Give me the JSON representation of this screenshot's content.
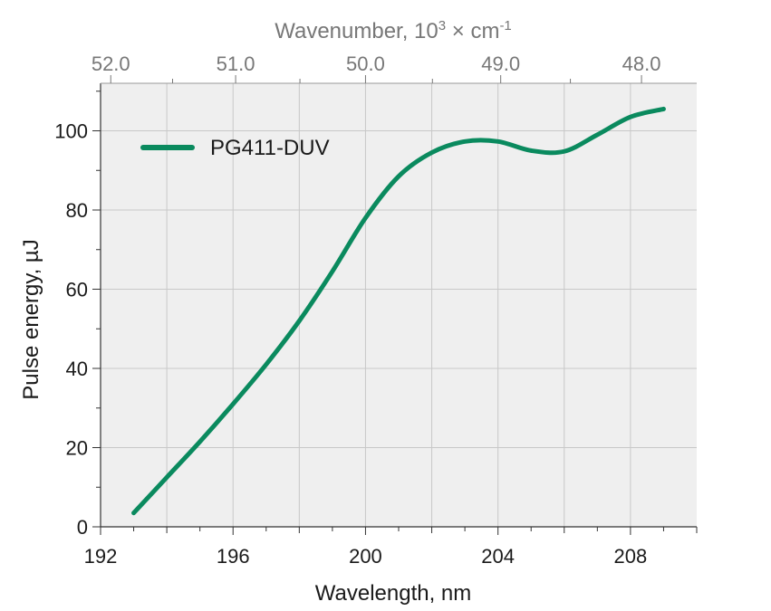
{
  "chart_data": {
    "type": "line",
    "xlabel": "Wavelength, nm",
    "ylabel": "Pulse energy, µJ",
    "top_axis": {
      "label_prefix": "Wavenumber, 10",
      "label_exp": "3",
      "label_mid": " × cm",
      "label_exp2": "-1",
      "ticks": [
        "52.0",
        "51.0",
        "50.0",
        "49.0",
        "48.0"
      ],
      "tick_values": [
        52.0,
        51.0,
        50.0,
        49.0,
        48.0
      ]
    },
    "xlim": [
      192,
      210
    ],
    "ylim": [
      0,
      112
    ],
    "x_ticks": [
      192,
      196,
      200,
      204,
      208
    ],
    "x_tick_labels": [
      "192",
      "196",
      "200",
      "204",
      "208"
    ],
    "y_ticks": [
      0,
      20,
      40,
      60,
      80,
      100
    ],
    "y_tick_labels": [
      "0",
      "20",
      "40",
      "60",
      "80",
      "100"
    ],
    "grid": true,
    "legend_placement": "top-left",
    "background": "#efefef",
    "series": [
      {
        "name": "PG411-DUV",
        "color": "#0a8a5e",
        "x": [
          193.0,
          194.0,
          195.0,
          196.0,
          197.0,
          198.0,
          199.0,
          200.0,
          201.0,
          202.0,
          203.0,
          204.0,
          205.0,
          206.0,
          207.0,
          208.0,
          209.0
        ],
        "y": [
          3.5,
          12.5,
          21.5,
          31.0,
          41.0,
          52.0,
          64.5,
          78.0,
          88.5,
          94.5,
          97.3,
          97.3,
          95.0,
          94.8,
          99.0,
          103.5,
          105.5
        ]
      }
    ]
  }
}
